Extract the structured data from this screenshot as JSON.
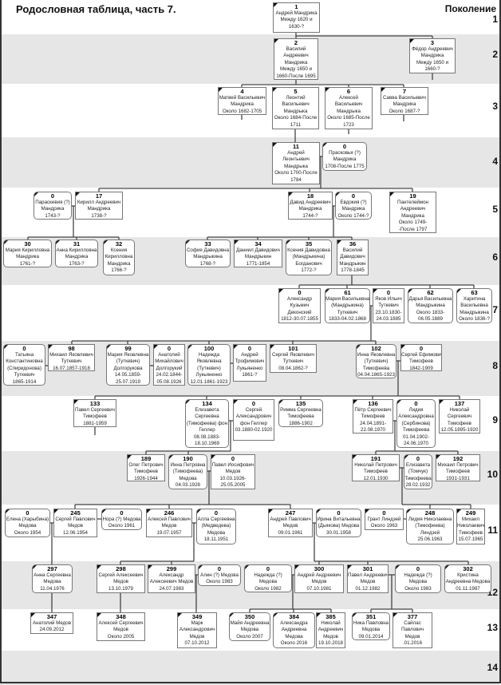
{
  "title": "Родословная таблица, часть 7.",
  "generation_header": "Поколение",
  "generations": [
    "1",
    "2",
    "3",
    "4",
    "5",
    "6",
    "7",
    "8",
    "9",
    "10",
    "11",
    "12",
    "13",
    "14"
  ],
  "colors": {
    "band_gray": "#e6e6e6",
    "box_border": "#777777",
    "line": "#444444"
  },
  "people": [
    {
      "num": "1",
      "lines": [
        "Андрей Мандрика",
        "Между 1620 и",
        "1630-?"
      ]
    },
    {
      "num": "2",
      "lines": [
        "Василий",
        "Андреевич",
        "Мандрика",
        "Между 1650 и",
        "1660-После 1695"
      ]
    },
    {
      "num": "3",
      "lines": [
        "Фёдор Андреевич",
        "Мандрика",
        "Между 1650 и",
        "1660-?"
      ]
    },
    {
      "num": "4",
      "lines": [
        "Матвей Васильевич",
        "Мандрика",
        "Около 1682-1705"
      ]
    },
    {
      "num": "5",
      "lines": [
        "Леонтий",
        "Васильевич",
        "Мандрыка",
        "Около 1684-После",
        "1711"
      ]
    },
    {
      "num": "6",
      "lines": [
        "Алексей",
        "Васильевич",
        "Мандрыка",
        "Около 1685-После",
        "1723"
      ]
    },
    {
      "num": "7",
      "lines": [
        "Савва Васильевич",
        "Мандрика",
        "Около 1687-?"
      ]
    },
    {
      "num": "11",
      "lines": [
        "Андрей",
        "Леонтьевич",
        "Мандрыка",
        "Около 1700-После",
        "1784"
      ]
    },
    {
      "num": "0",
      "lines": [
        "Прасковья (?)",
        "Мандрика",
        "1708-После 1775"
      ]
    },
    {
      "num": "0",
      "lines": [
        "Параскевия (?)",
        "Мандрика",
        "1743-?"
      ]
    },
    {
      "num": "17",
      "lines": [
        "Кирилл Андреевич",
        "Мандрика",
        "1738-?"
      ]
    },
    {
      "num": "18",
      "lines": [
        "Давид Андреевич",
        "Мандрика",
        "1744-?"
      ]
    },
    {
      "num": "0",
      "lines": [
        "Евдокия (?)",
        "Мандрика",
        "Около 1744-?"
      ]
    },
    {
      "num": "19",
      "lines": [
        "Пантелеймон",
        "Андреевич",
        "Мандрика",
        "Около 1749-",
        "-После  1797"
      ]
    },
    {
      "num": "30",
      "lines": [
        "Мария Кирилловна",
        "Мандрика",
        "1761-?"
      ]
    },
    {
      "num": "31",
      "lines": [
        "Анна Кирилловна",
        "Мандрика",
        "1763-?"
      ]
    },
    {
      "num": "32",
      "lines": [
        "Ксения",
        "Кирилловна",
        "Мандрика",
        "1766-?"
      ]
    },
    {
      "num": "33",
      "lines": [
        "София Давидовна",
        "Мандрыкина",
        "1768-?"
      ]
    },
    {
      "num": "34",
      "lines": [
        "Даниил Давидович",
        "Мандрыкин",
        "1771-1854"
      ]
    },
    {
      "num": "35",
      "lines": [
        "Ксения Давидовна",
        "(Мандрыкина)",
        "Богданович",
        "1772-?"
      ]
    },
    {
      "num": "36",
      "lines": [
        "Василий",
        "Давидович",
        "Мандрыкин",
        "1778-1845"
      ]
    },
    {
      "num": "0",
      "lines": [
        "Александр",
        "Кузьмич",
        "Деконский",
        "1812-30.07.1855"
      ]
    },
    {
      "num": "61",
      "lines": [
        "Мария Васильевна",
        "(Мандрыкина)",
        "Туткевич",
        "1833-04.02.1868"
      ]
    },
    {
      "num": "0",
      "lines": [
        "Яков Ильич",
        "Туткевич",
        "23.10.1830-",
        "24.03.1885"
      ]
    },
    {
      "num": "62",
      "lines": [
        "Дарья Васильевна",
        "Мандрыкина",
        "Около 1833-",
        "06.05.1889"
      ]
    },
    {
      "num": "63",
      "lines": [
        "Харитина",
        "Васильевна",
        "Мандрыкина",
        "Около 1836-?"
      ]
    },
    {
      "num": "0",
      "lines": [
        "Татьяна",
        "Константиновна",
        "(Спиридонова)",
        "Туткевич",
        "1865-1914"
      ]
    },
    {
      "num": "98",
      "lines": [
        "Михаил Яковлевич",
        "Туткевич",
        "16.07.1857-1918"
      ]
    },
    {
      "num": "99",
      "lines": [
        "Мария Яковлевна",
        "(Туткевич)",
        "Долгорукова",
        "14.05.1859-",
        "25.07.1919"
      ]
    },
    {
      "num": "0",
      "lines": [
        "Анатолий",
        "Михайлович",
        "Долгорукий",
        "24.02.1844-",
        "05.08.1926"
      ]
    },
    {
      "num": "100",
      "lines": [
        "Надежда",
        "Яковлевна",
        "(Туткевич)",
        "Лукьяненко",
        "12.01.1861-1923"
      ]
    },
    {
      "num": "0",
      "lines": [
        "Андрей",
        "Трофимович",
        "Лукьяненко",
        "1861-?"
      ]
    },
    {
      "num": "101",
      "lines": [
        "Сергей Яковлевич",
        "Туткевич",
        "08.04.1862-?"
      ]
    },
    {
      "num": "102",
      "lines": [
        "Инна Яковлевна",
        "(Туткевич)",
        "Тимофеева",
        "04.04.1865-1923"
      ]
    },
    {
      "num": "0",
      "lines": [
        "Сергей Ефимович",
        "Тимофеев",
        "1842-1909"
      ]
    },
    {
      "num": "133",
      "lines": [
        "Павел Сергеевич",
        "Тимофеев",
        "1881-1959"
      ]
    },
    {
      "num": "134",
      "lines": [
        "Елизавета",
        "Сергеевна",
        "(Тимофеева) фон",
        "Геллер",
        "08.08.1883-",
        "18.10.1969"
      ]
    },
    {
      "num": "0",
      "lines": [
        "Сергей",
        "Александрович",
        "фон Геллер",
        "03.1880-02.1920"
      ]
    },
    {
      "num": "135",
      "lines": [
        "Римма Сергеевна",
        "Тимофеева",
        "1886-1902"
      ]
    },
    {
      "num": "136",
      "lines": [
        "Пётр Сергеевич",
        "Тимофеев",
        "24.04.1891-",
        "22.08.1970"
      ]
    },
    {
      "num": "0",
      "lines": [
        "Лидия",
        "Александровна",
        "(Сербинова)",
        "Тимофеева",
        "01.04.1902-",
        "24.06.1970"
      ]
    },
    {
      "num": "137",
      "lines": [
        "Николай",
        "Сергеевич",
        "Тимофеев",
        "12.05.1895-1920"
      ]
    },
    {
      "num": "189",
      "lines": [
        "Олег Петрович",
        "Тимофеев",
        "1926-1944"
      ]
    },
    {
      "num": "190",
      "lines": [
        "Инна Петровна",
        "(Тимофеева)",
        "Медова",
        "04.03.1928"
      ]
    },
    {
      "num": "0",
      "lines": [
        "Павел Иосифович",
        "Медов",
        "10.03.1926-",
        "25.05.2005"
      ]
    },
    {
      "num": "191",
      "lines": [
        "Николай Петрович",
        "Тимофеев",
        "12.01.1930"
      ]
    },
    {
      "num": "0",
      "lines": [
        "Елизавета",
        "(Томчук)",
        "Тимофеева",
        "28.02.1932"
      ]
    },
    {
      "num": "192",
      "lines": [
        "Михаил Петрович",
        "Тимофеев",
        "1931-1931"
      ]
    },
    {
      "num": "0",
      "lines": [
        "Елена (Харыбина)",
        "Медова",
        "Около 1954"
      ]
    },
    {
      "num": "245",
      "lines": [
        "Сергей Павлович",
        "Медов",
        "12.06.1954"
      ]
    },
    {
      "num": "0",
      "lines": [
        "Нора (?) Медова",
        "Около 1961"
      ]
    },
    {
      "num": "246",
      "lines": [
        "Алексей Павлович",
        "Медов",
        "19.07.1957"
      ]
    },
    {
      "num": "0",
      "lines": [
        "Алла Сергеевна",
        "(Медведева)",
        "Медова",
        "18.11.1951"
      ]
    },
    {
      "num": "247",
      "lines": [
        "Андрей Павлович",
        "Медов",
        "09.01.1961"
      ]
    },
    {
      "num": "0",
      "lines": [
        "Ирина Витальевна",
        "(Дьякова) Медова",
        "30.01.1958"
      ]
    },
    {
      "num": "0",
      "lines": [
        "Грант Линдзей",
        "Около 1963"
      ]
    },
    {
      "num": "248",
      "lines": [
        "Лидия Николаевна",
        "(Тимофеева)",
        "Линдзей",
        "25.06.1963"
      ]
    },
    {
      "num": "249",
      "lines": [
        "Михаил",
        "Николаевич",
        "Тимофеев",
        "15.07.1965"
      ]
    },
    {
      "num": "297",
      "lines": [
        "Анна Сергеевна",
        "Медова",
        "11.04.1976"
      ]
    },
    {
      "num": "298",
      "lines": [
        "Сергей Алексеевич",
        "Медов",
        "13.10.1979"
      ]
    },
    {
      "num": "299",
      "lines": [
        "Александр",
        "Алексеевич Медов",
        "24.07.1983"
      ]
    },
    {
      "num": "0",
      "lines": [
        "Алин (?) Медова",
        "Около 1983"
      ]
    },
    {
      "num": "0",
      "lines": [
        "Надежда (?)",
        "Медова",
        "Около 1982"
      ]
    },
    {
      "num": "300",
      "lines": [
        "Андрей Андреевич",
        "Медов",
        "07.10.1981"
      ]
    },
    {
      "num": "301",
      "lines": [
        "Павел Андреевич",
        "Медов",
        "01.12.1982"
      ]
    },
    {
      "num": "0",
      "lines": [
        "Надежда (?)",
        "Медова",
        "Около 1983"
      ]
    },
    {
      "num": "302",
      "lines": [
        "Кристина",
        "Андреевна Медова",
        "01.11.1987"
      ]
    },
    {
      "num": "347",
      "lines": [
        "Анатолий Медов",
        "24.09.2012"
      ]
    },
    {
      "num": "348",
      "lines": [
        "Алексей Сергеевич",
        "Медов",
        "Около 2005"
      ]
    },
    {
      "num": "349",
      "lines": [
        "Марк",
        "Александрович",
        "Медов",
        "07.10.2012"
      ]
    },
    {
      "num": "350",
      "lines": [
        "Майя Андреевна",
        "Медова",
        "Около 2007"
      ]
    },
    {
      "num": "384",
      "lines": [
        "Александра",
        "Андреевна",
        "Медова",
        "Около 2016"
      ]
    },
    {
      "num": "385",
      "lines": [
        "Николай",
        "Андреевич",
        "Медов",
        "19.10.2018"
      ]
    },
    {
      "num": "351",
      "lines": [
        "Ника Павловна",
        "Медова",
        "09.01.2014"
      ]
    },
    {
      "num": "377",
      "lines": [
        "Сайлас",
        "Павлович",
        "Медов",
        ".01.2016"
      ]
    }
  ]
}
